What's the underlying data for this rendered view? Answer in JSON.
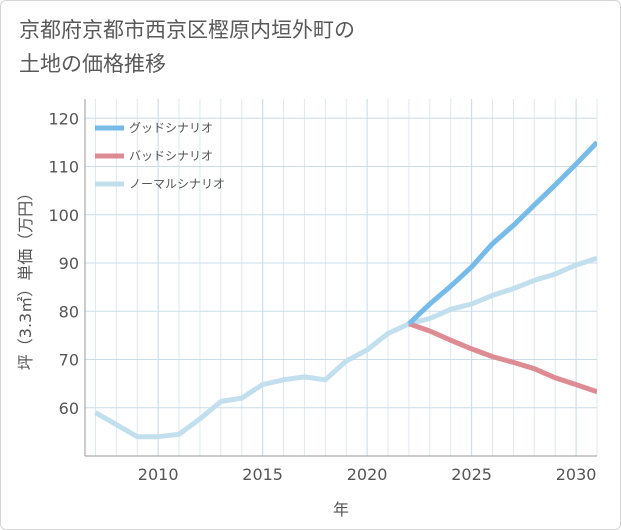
{
  "chart_data": {
    "type": "line",
    "title": "京都府京都市西京区樫原内垣外町の\n土地の価格推移",
    "xlabel": "年",
    "ylabel": "坪（3.3㎡）単価（万円）",
    "xlim": [
      2006.5,
      2031
    ],
    "ylim": [
      50,
      124
    ],
    "xticks": [
      2010,
      2015,
      2020,
      2025,
      2030
    ],
    "yticks": [
      60,
      70,
      80,
      90,
      100,
      110,
      120
    ],
    "grid": true,
    "legend_position": "top-left",
    "series": [
      {
        "name": "グッドシナリオ",
        "color": "#77bbe9",
        "x": [
          2022,
          2023,
          2024,
          2025,
          2026,
          2027,
          2028,
          2029,
          2030,
          2031
        ],
        "values": [
          77.4,
          81.5,
          85.2,
          89.2,
          94.0,
          97.8,
          102.0,
          106.2,
          110.5,
          115.0
        ]
      },
      {
        "name": "バッドシナリオ",
        "color": "#de8c93",
        "x": [
          2022,
          2023,
          2024,
          2025,
          2026,
          2027,
          2028,
          2029,
          2030,
          2031
        ],
        "values": [
          77.4,
          75.9,
          74.0,
          72.2,
          70.6,
          69.4,
          68.1,
          66.2,
          64.8,
          63.3
        ]
      },
      {
        "name": "ノーマルシナリオ",
        "color": "#c2dfee",
        "x": [
          2007,
          2008,
          2009,
          2010,
          2011,
          2012,
          2013,
          2014,
          2015,
          2016,
          2017,
          2018,
          2019,
          2020,
          2021,
          2022,
          2023,
          2024,
          2025,
          2026,
          2027,
          2028,
          2029,
          2030,
          2031
        ],
        "values": [
          59.0,
          56.5,
          54.0,
          54.0,
          54.5,
          57.7,
          61.3,
          62.0,
          64.8,
          65.8,
          66.4,
          65.8,
          69.7,
          72.0,
          75.4,
          77.4,
          78.5,
          80.4,
          81.5,
          83.3,
          84.7,
          86.4,
          87.7,
          89.6,
          91.0
        ]
      }
    ]
  }
}
